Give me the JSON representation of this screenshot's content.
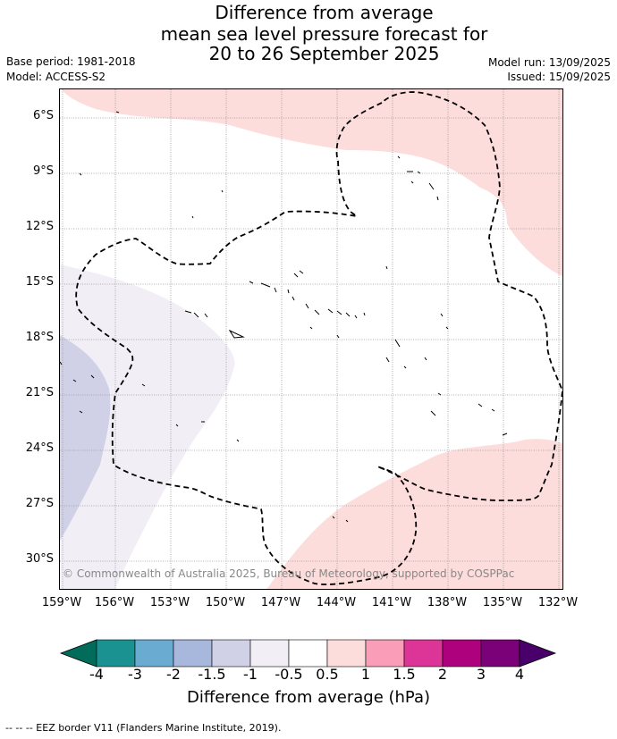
{
  "title": {
    "line1": "Difference from average",
    "line2": "mean sea level pressure forecast for",
    "line3": "20 to 26 September 2025"
  },
  "meta": {
    "base_period": "Base period: 1981-2018",
    "model": "Model: ACCESS-S2",
    "model_run": "Model run: 13/09/2025",
    "issued": "Issued: 15/09/2025"
  },
  "map": {
    "lat_labels": [
      "6°S",
      "9°S",
      "12°S",
      "15°S",
      "18°S",
      "21°S",
      "24°S",
      "27°S",
      "30°S"
    ],
    "lon_labels": [
      "159°W",
      "156°W",
      "153°W",
      "150°W",
      "147°W",
      "144°W",
      "141°W",
      "138°W",
      "135°W",
      "132°W"
    ],
    "copyright": "© Commonwealth of Australia 2025, Bureau of Meteorology, supported by COSPPac",
    "colors": {
      "positive_0_5_to_1": "#fddcdc",
      "negative_0_5_to_1": "#f1eef6",
      "negative_1_to_1_5": "#d0d1e6",
      "grid": "#999999",
      "eez_border": "#000000"
    }
  },
  "colorbar": {
    "ticks": [
      "-4",
      "-3",
      "-2",
      "-1.5",
      "-1",
      "-0.5",
      "0.5",
      "1",
      "1.5",
      "2",
      "3",
      "4"
    ],
    "colors": [
      "#1a9291",
      "#6aabd2",
      "#a7b8dc",
      "#d0d1e6",
      "#f1eef6",
      "#ffffff",
      "#fddcdc",
      "#f99db8",
      "#dd3497",
      "#ae017e",
      "#7a0177"
    ],
    "extend_low_color": "#016c59",
    "extend_high_color": "#49006a",
    "label": "Difference from average (hPa)"
  },
  "footnote": "--  --  -- EEZ border V11 (Flanders Marine Institute, 2019)."
}
